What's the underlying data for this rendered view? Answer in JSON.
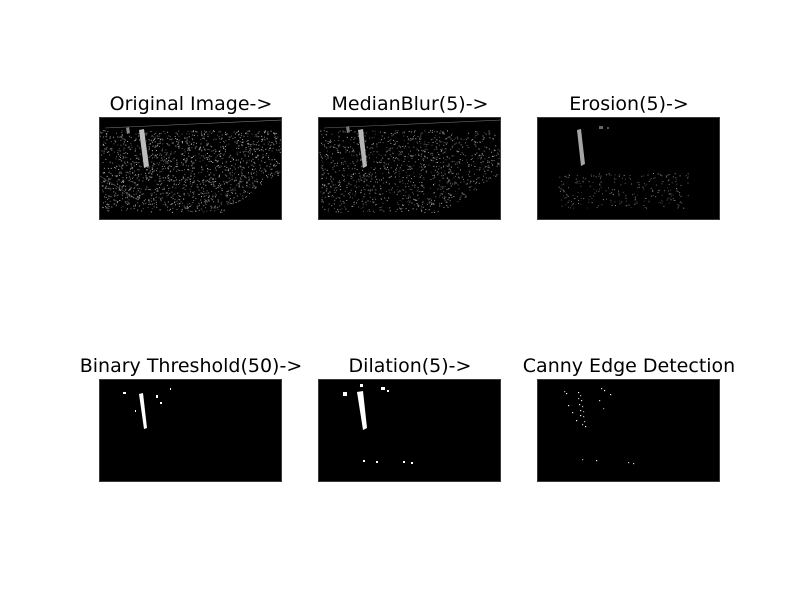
{
  "figure": {
    "panels": [
      {
        "title": "Original Image->"
      },
      {
        "title": "MedianBlur(5)->"
      },
      {
        "title": "Erosion(5)->"
      },
      {
        "title": "Binary Threshold(50)->"
      },
      {
        "title": "Dilation(5)->"
      },
      {
        "title": "Canny Edge Detection"
      }
    ]
  }
}
